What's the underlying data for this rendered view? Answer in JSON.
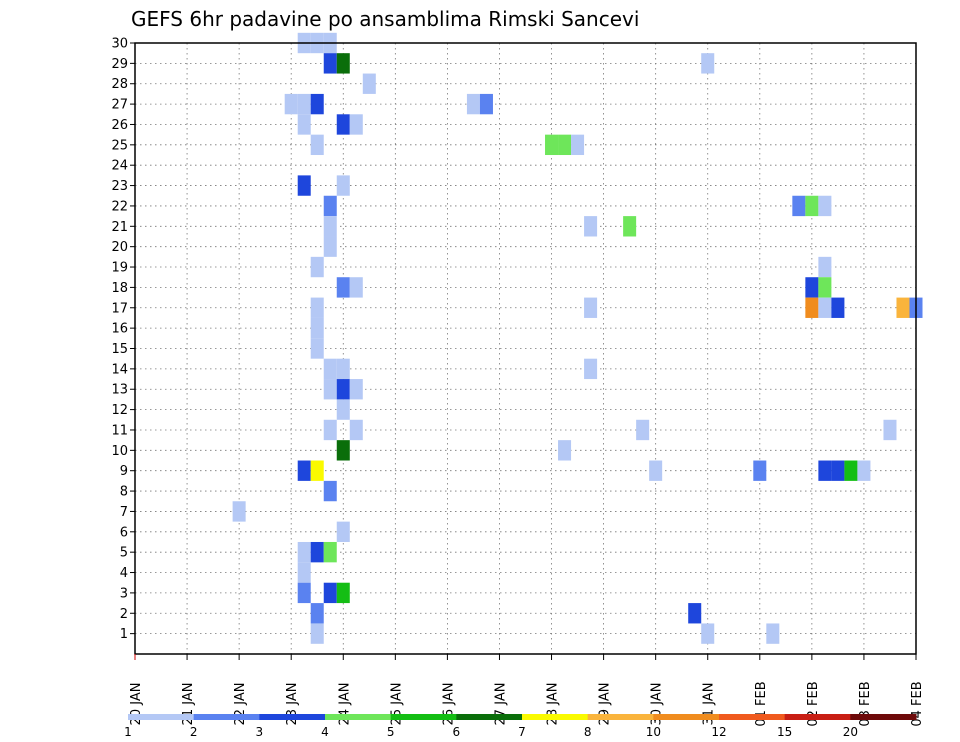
{
  "chart_data": {
    "type": "heatmap",
    "title": "GEFS 6hr padavine po ansamblima Rimski Sancevi",
    "xlabel": "",
    "ylabel": "",
    "x_tick_labels": [
      "20 JAN",
      "21 JAN",
      "22 JAN",
      "23 JAN",
      "24 JAN",
      "25 JAN",
      "26 JAN",
      "27 JAN",
      "28 JAN",
      "29 JAN",
      "30 JAN",
      "31 JAN",
      "01 FEB",
      "02 FEB",
      "03 FEB",
      "04 FEB"
    ],
    "y_tick_labels": [
      "1",
      "2",
      "3",
      "4",
      "5",
      "6",
      "7",
      "8",
      "9",
      "10",
      "11",
      "12",
      "13",
      "14",
      "15",
      "16",
      "17",
      "18",
      "19",
      "20",
      "21",
      "22",
      "23",
      "24",
      "25",
      "26",
      "27",
      "28",
      "29",
      "30"
    ],
    "x_unit": "day offset from 20 JAN 00Z (6-hour steps)",
    "xlim": [
      0,
      15
    ],
    "ylim": [
      0,
      30
    ],
    "grid": true,
    "colorbar": {
      "labels": [
        "1",
        "2",
        "3",
        "4",
        "5",
        "6",
        "7",
        "8",
        "10",
        "12",
        "15",
        "20"
      ],
      "colors": [
        "#b4c8f5",
        "#5a82f0",
        "#1e46dc",
        "#6ee65a",
        "#14be14",
        "#0a6e0a",
        "#fafa00",
        "#fab43c",
        "#f08c1e",
        "#f05a1e",
        "#c81e14",
        "#6e0a0a"
      ]
    },
    "cells": [
      {
        "member": 30,
        "day": 3.25,
        "level": 1
      },
      {
        "member": 30,
        "day": 3.5,
        "level": 1
      },
      {
        "member": 30,
        "day": 3.75,
        "level": 1
      },
      {
        "member": 29,
        "day": 3.75,
        "level": 3
      },
      {
        "member": 29,
        "day": 4.0,
        "level": 6
      },
      {
        "member": 29,
        "day": 11.0,
        "level": 1
      },
      {
        "member": 28,
        "day": 4.5,
        "level": 1
      },
      {
        "member": 27,
        "day": 3.0,
        "level": 1
      },
      {
        "member": 27,
        "day": 3.25,
        "level": 1
      },
      {
        "member": 27,
        "day": 3.5,
        "level": 3
      },
      {
        "member": 27,
        "day": 6.5,
        "level": 1
      },
      {
        "member": 27,
        "day": 6.75,
        "level": 2
      },
      {
        "member": 26,
        "day": 3.25,
        "level": 1
      },
      {
        "member": 26,
        "day": 4.0,
        "level": 3
      },
      {
        "member": 26,
        "day": 4.25,
        "level": 1
      },
      {
        "member": 25,
        "day": 3.5,
        "level": 1
      },
      {
        "member": 25,
        "day": 8.0,
        "level": 4
      },
      {
        "member": 25,
        "day": 8.25,
        "level": 4
      },
      {
        "member": 25,
        "day": 8.5,
        "level": 1
      },
      {
        "member": 23,
        "day": 3.25,
        "level": 3
      },
      {
        "member": 23,
        "day": 4.0,
        "level": 1
      },
      {
        "member": 22,
        "day": 3.75,
        "level": 2
      },
      {
        "member": 22,
        "day": 12.75,
        "level": 2
      },
      {
        "member": 22,
        "day": 13.0,
        "level": 4
      },
      {
        "member": 22,
        "day": 13.25,
        "level": 1
      },
      {
        "member": 21,
        "day": 3.75,
        "level": 1
      },
      {
        "member": 21,
        "day": 8.75,
        "level": 1
      },
      {
        "member": 21,
        "day": 9.5,
        "level": 4
      },
      {
        "member": 20,
        "day": 3.75,
        "level": 1
      },
      {
        "member": 19,
        "day": 3.5,
        "level": 1
      },
      {
        "member": 19,
        "day": 13.25,
        "level": 1
      },
      {
        "member": 18,
        "day": 4.0,
        "level": 2
      },
      {
        "member": 18,
        "day": 4.25,
        "level": 1
      },
      {
        "member": 18,
        "day": 13.0,
        "level": 3
      },
      {
        "member": 18,
        "day": 13.25,
        "level": 4
      },
      {
        "member": 17,
        "day": 3.5,
        "level": 1
      },
      {
        "member": 17,
        "day": 8.75,
        "level": 1
      },
      {
        "member": 17,
        "day": 13.0,
        "level": 9
      },
      {
        "member": 17,
        "day": 13.25,
        "level": 1
      },
      {
        "member": 17,
        "day": 13.5,
        "level": 3
      },
      {
        "member": 17,
        "day": 14.75,
        "level": 8
      },
      {
        "member": 17,
        "day": 15.0,
        "level": 2
      },
      {
        "member": 16,
        "day": 3.5,
        "level": 1
      },
      {
        "member": 15,
        "day": 3.5,
        "level": 1
      },
      {
        "member": 14,
        "day": 3.75,
        "level": 1
      },
      {
        "member": 14,
        "day": 4.0,
        "level": 1
      },
      {
        "member": 14,
        "day": 8.75,
        "level": 1
      },
      {
        "member": 13,
        "day": 3.75,
        "level": 1
      },
      {
        "member": 13,
        "day": 4.0,
        "level": 3
      },
      {
        "member": 13,
        "day": 4.25,
        "level": 1
      },
      {
        "member": 12,
        "day": 4.0,
        "level": 1
      },
      {
        "member": 11,
        "day": 3.75,
        "level": 1
      },
      {
        "member": 11,
        "day": 4.25,
        "level": 1
      },
      {
        "member": 11,
        "day": 9.75,
        "level": 1
      },
      {
        "member": 11,
        "day": 14.5,
        "level": 1
      },
      {
        "member": 10,
        "day": 4.0,
        "level": 6
      },
      {
        "member": 10,
        "day": 8.25,
        "level": 1
      },
      {
        "member": 9,
        "day": 3.25,
        "level": 3
      },
      {
        "member": 9,
        "day": 3.5,
        "level": 7
      },
      {
        "member": 9,
        "day": 10.0,
        "level": 1
      },
      {
        "member": 9,
        "day": 12.0,
        "level": 2
      },
      {
        "member": 9,
        "day": 13.25,
        "level": 3
      },
      {
        "member": 9,
        "day": 13.5,
        "level": 3
      },
      {
        "member": 9,
        "day": 13.75,
        "level": 5
      },
      {
        "member": 9,
        "day": 14.0,
        "level": 1
      },
      {
        "member": 8,
        "day": 3.75,
        "level": 2
      },
      {
        "member": 7,
        "day": 2.0,
        "level": 1
      },
      {
        "member": 6,
        "day": 4.0,
        "level": 1
      },
      {
        "member": 5,
        "day": 3.25,
        "level": 1
      },
      {
        "member": 5,
        "day": 3.5,
        "level": 3
      },
      {
        "member": 5,
        "day": 3.75,
        "level": 4
      },
      {
        "member": 4,
        "day": 3.25,
        "level": 1
      },
      {
        "member": 3,
        "day": 3.25,
        "level": 2
      },
      {
        "member": 3,
        "day": 3.75,
        "level": 3
      },
      {
        "member": 3,
        "day": 4.0,
        "level": 5
      },
      {
        "member": 2,
        "day": 3.5,
        "level": 2
      },
      {
        "member": 2,
        "day": 10.75,
        "level": 3
      },
      {
        "member": 1,
        "day": 3.5,
        "level": 1
      },
      {
        "member": 1,
        "day": 11.0,
        "level": 1
      },
      {
        "member": 1,
        "day": 12.25,
        "level": 1
      }
    ]
  }
}
